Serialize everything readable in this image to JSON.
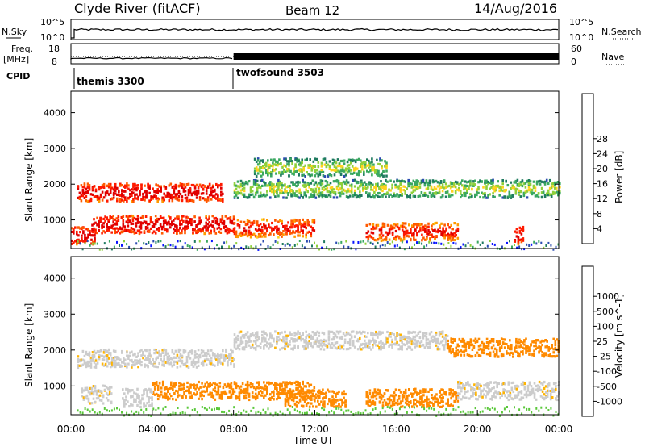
{
  "header": {
    "title": "Clyde River (fitACF)",
    "beam": "Beam 12",
    "date": "14/Aug/2016"
  },
  "top_panels": {
    "nsky_label": "N.Sky",
    "nsky_ticks": [
      "10^5",
      "10^0"
    ],
    "nsearch_label": "N.Search",
    "nsearch_ticks": [
      "10^5",
      "10^0"
    ],
    "freq_label_1": "Freq.",
    "freq_label_2": "[MHz]",
    "freq_ticks": [
      "18",
      "8"
    ],
    "nave_label": "Nave",
    "nave_ticks": [
      "60",
      "0"
    ],
    "cpid_label": "CPID",
    "cpid_modes": [
      {
        "name": "themis 3300",
        "start_hour": 0
      },
      {
        "name": "twofsound 3503",
        "start_hour": 8
      }
    ]
  },
  "colors": {
    "power_scale": [
      "#0a14ff",
      "#2a4bb0",
      "#1f7a5f",
      "#3aa860",
      "#8ed03b",
      "#ffd21e",
      "#ff9a00",
      "#ff5a00",
      "#ff1a00",
      "#e00000"
    ],
    "velocity_scale": [
      "#ff0000",
      "#ff4a00",
      "#ff8a00",
      "#ffb400",
      "#cccccc",
      "#cccccc",
      "#5ac83a",
      "#2e8b57",
      "#2f6cc8",
      "#1a1aff"
    ]
  },
  "chart_data": [
    {
      "type": "heatmap",
      "name": "power",
      "x_range": [
        0,
        24
      ],
      "ylabel": "Slant Range [km]",
      "ylim": [
        200,
        4600
      ],
      "yticks": [
        1000,
        2000,
        3000,
        4000
      ],
      "colorbar_label": "Power [dB]",
      "colorbar_ticks": [
        4,
        8,
        12,
        16,
        20,
        24,
        28
      ],
      "bands": [
        {
          "t_start": 0.3,
          "t_end": 7.5,
          "range_km": 1800,
          "level": 9
        },
        {
          "t_start": 8.0,
          "t_end": 24.0,
          "range_km": 1900,
          "level": 4
        },
        {
          "t_start": 1.0,
          "t_end": 8.0,
          "range_km": 900,
          "level": 9
        },
        {
          "t_start": 8.0,
          "t_end": 12.0,
          "range_km": 800,
          "level": 8
        },
        {
          "t_start": 14.5,
          "t_end": 19.0,
          "range_km": 700,
          "level": 8
        },
        {
          "t_start": 9.0,
          "t_end": 15.5,
          "range_km": 2500,
          "level": 4
        },
        {
          "t_start": 0.0,
          "t_end": 1.2,
          "range_km": 600,
          "level": 9
        },
        {
          "t_start": 21.8,
          "t_end": 22.2,
          "range_km": 600,
          "level": 9
        }
      ]
    },
    {
      "type": "heatmap",
      "name": "velocity",
      "x_range": [
        0,
        24
      ],
      "xlabel": "Time UT",
      "xticks": [
        "00:00",
        "04:00",
        "08:00",
        "12:00",
        "16:00",
        "20:00",
        "00:00"
      ],
      "ylabel": "Slant Range [km]",
      "ylim": [
        200,
        4600
      ],
      "yticks": [
        1000,
        2000,
        3000,
        4000
      ],
      "colorbar_label": "Velocity [m s^-1]",
      "colorbar_ticks": [
        -1000,
        -500,
        -100,
        -25,
        25,
        100,
        500,
        1000
      ],
      "bands": [
        {
          "t_start": 0.3,
          "t_end": 8.0,
          "range_km": 1800,
          "value": 0
        },
        {
          "t_start": 8.0,
          "t_end": 18.5,
          "range_km": 2300,
          "value": 0
        },
        {
          "t_start": 18.5,
          "t_end": 24.0,
          "range_km": 2100,
          "value": -300
        },
        {
          "t_start": 4.0,
          "t_end": 12.0,
          "range_km": 900,
          "value": -200
        },
        {
          "t_start": 14.5,
          "t_end": 19.0,
          "range_km": 700,
          "value": -200
        },
        {
          "t_start": 10.5,
          "t_end": 13.5,
          "range_km": 700,
          "value": -200
        },
        {
          "t_start": 0.5,
          "t_end": 2.0,
          "range_km": 800,
          "value": 0
        },
        {
          "t_start": 19.0,
          "t_end": 24.0,
          "range_km": 900,
          "value": 0
        },
        {
          "t_start": 2.5,
          "t_end": 4.0,
          "range_km": 700,
          "value": 60
        }
      ]
    }
  ]
}
